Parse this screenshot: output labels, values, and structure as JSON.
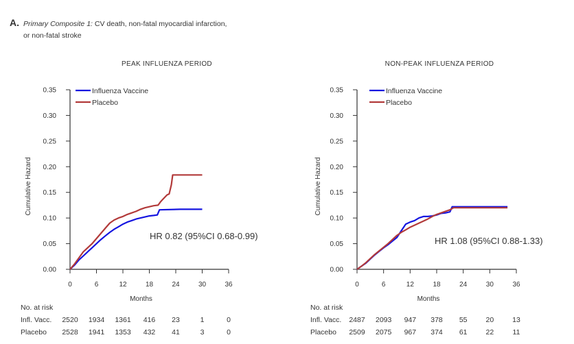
{
  "figure": {
    "panel_letter": "A.",
    "title_italic": "Primary Composite 1:",
    "title_line1": " CV death, non-fatal myocardial infarction,",
    "title_line2": "or non-fatal stroke"
  },
  "colors": {
    "vaccine": "#1515e0",
    "placebo": "#b23a3a",
    "axis": "#333333"
  },
  "chart_data": [
    {
      "type": "line",
      "title": "PEAK INFLUENZA PERIOD",
      "xlabel": "Months",
      "ylabel": "Cumulative Hazard",
      "xlim": [
        0,
        36
      ],
      "ylim": [
        0,
        0.35
      ],
      "xticks": [
        "0",
        "6",
        "12",
        "18",
        "24",
        "30",
        "36"
      ],
      "yticks": [
        "0.00",
        "0.05",
        "0.10",
        "0.15",
        "0.20",
        "0.25",
        "0.30",
        "0.35"
      ],
      "legend_position": "top-left",
      "annotation": "HR 0.82 (95%CI 0.68-0.99)",
      "series": [
        {
          "name": "Influenza Vaccine",
          "color": "#1515e0",
          "points": [
            [
              0,
              0
            ],
            [
              1,
              0.008
            ],
            [
              2,
              0.018
            ],
            [
              3,
              0.026
            ],
            [
              4,
              0.034
            ],
            [
              5,
              0.042
            ],
            [
              6,
              0.05
            ],
            [
              7,
              0.058
            ],
            [
              8,
              0.065
            ],
            [
              9,
              0.072
            ],
            [
              10,
              0.078
            ],
            [
              11,
              0.083
            ],
            [
              12,
              0.088
            ],
            [
              13,
              0.092
            ],
            [
              14,
              0.095
            ],
            [
              15,
              0.098
            ],
            [
              16,
              0.1
            ],
            [
              17,
              0.102
            ],
            [
              18,
              0.104
            ],
            [
              19,
              0.105
            ],
            [
              19.8,
              0.106
            ],
            [
              20.3,
              0.116
            ],
            [
              25,
              0.117
            ],
            [
              30,
              0.117
            ]
          ]
        },
        {
          "name": "Placebo",
          "color": "#b23a3a",
          "points": [
            [
              0,
              0
            ],
            [
              1,
              0.01
            ],
            [
              2,
              0.022
            ],
            [
              3,
              0.034
            ],
            [
              4,
              0.042
            ],
            [
              5,
              0.05
            ],
            [
              6,
              0.06
            ],
            [
              7,
              0.07
            ],
            [
              8,
              0.08
            ],
            [
              9,
              0.09
            ],
            [
              10,
              0.096
            ],
            [
              11,
              0.1
            ],
            [
              12,
              0.103
            ],
            [
              13,
              0.107
            ],
            [
              14,
              0.11
            ],
            [
              15,
              0.113
            ],
            [
              16,
              0.117
            ],
            [
              17,
              0.12
            ],
            [
              18,
              0.122
            ],
            [
              19,
              0.124
            ],
            [
              20,
              0.125
            ],
            [
              20.5,
              0.131
            ],
            [
              21,
              0.136
            ],
            [
              22,
              0.145
            ],
            [
              22.5,
              0.147
            ],
            [
              23,
              0.165
            ],
            [
              23.3,
              0.184
            ],
            [
              30,
              0.184
            ]
          ]
        }
      ],
      "risk_table": {
        "header": "No. at risk",
        "rows": [
          {
            "label": "Infl. Vacc.",
            "values": [
              "2520",
              "1934",
              "1361",
              "416",
              "23",
              "1",
              "0"
            ]
          },
          {
            "label": "Placebo",
            "values": [
              "2528",
              "1941",
              "1353",
              "432",
              "41",
              "3",
              "0"
            ]
          }
        ]
      }
    },
    {
      "type": "line",
      "title": "NON-PEAK INFLUENZA PERIOD",
      "xlabel": "Months",
      "ylabel": "Cumulative Hazard",
      "xlim": [
        0,
        36
      ],
      "ylim": [
        0,
        0.35
      ],
      "xticks": [
        "0",
        "6",
        "12",
        "18",
        "24",
        "30",
        "36"
      ],
      "yticks": [
        "0.00",
        "0.05",
        "0.10",
        "0.15",
        "0.20",
        "0.25",
        "0.30",
        "0.35"
      ],
      "legend_position": "top-left",
      "annotation": "HR 1.08 (95%CI 0.88-1.33)",
      "series": [
        {
          "name": "Influenza Vaccine",
          "color": "#1515e0",
          "points": [
            [
              0,
              0
            ],
            [
              1,
              0.006
            ],
            [
              2,
              0.012
            ],
            [
              3,
              0.02
            ],
            [
              4,
              0.028
            ],
            [
              5,
              0.035
            ],
            [
              6,
              0.042
            ],
            [
              7,
              0.048
            ],
            [
              8,
              0.055
            ],
            [
              9,
              0.062
            ],
            [
              10,
              0.075
            ],
            [
              11,
              0.088
            ],
            [
              12,
              0.092
            ],
            [
              13,
              0.095
            ],
            [
              14,
              0.1
            ],
            [
              15,
              0.103
            ],
            [
              16,
              0.103
            ],
            [
              17,
              0.104
            ],
            [
              18,
              0.106
            ],
            [
              19,
              0.109
            ],
            [
              20,
              0.11
            ],
            [
              21,
              0.112
            ],
            [
              21.5,
              0.122
            ],
            [
              34,
              0.122
            ]
          ]
        },
        {
          "name": "Placebo",
          "color": "#b23a3a",
          "points": [
            [
              0,
              0
            ],
            [
              1,
              0.006
            ],
            [
              2,
              0.013
            ],
            [
              3,
              0.021
            ],
            [
              4,
              0.029
            ],
            [
              5,
              0.036
            ],
            [
              6,
              0.043
            ],
            [
              7,
              0.05
            ],
            [
              8,
              0.058
            ],
            [
              9,
              0.066
            ],
            [
              10,
              0.072
            ],
            [
              11,
              0.077
            ],
            [
              12,
              0.082
            ],
            [
              13,
              0.086
            ],
            [
              14,
              0.09
            ],
            [
              15,
              0.094
            ],
            [
              16,
              0.098
            ],
            [
              17,
              0.103
            ],
            [
              18,
              0.107
            ],
            [
              19,
              0.11
            ],
            [
              20,
              0.113
            ],
            [
              21,
              0.116
            ],
            [
              21.8,
              0.12
            ],
            [
              34,
              0.12
            ]
          ]
        }
      ],
      "risk_table": {
        "header": "No. at risk",
        "rows": [
          {
            "label": "Infl. Vacc.",
            "values": [
              "2487",
              "2093",
              "947",
              "378",
              "55",
              "20",
              "13"
            ]
          },
          {
            "label": "Placebo",
            "values": [
              "2509",
              "2075",
              "967",
              "374",
              "61",
              "22",
              "11"
            ]
          }
        ]
      }
    }
  ]
}
